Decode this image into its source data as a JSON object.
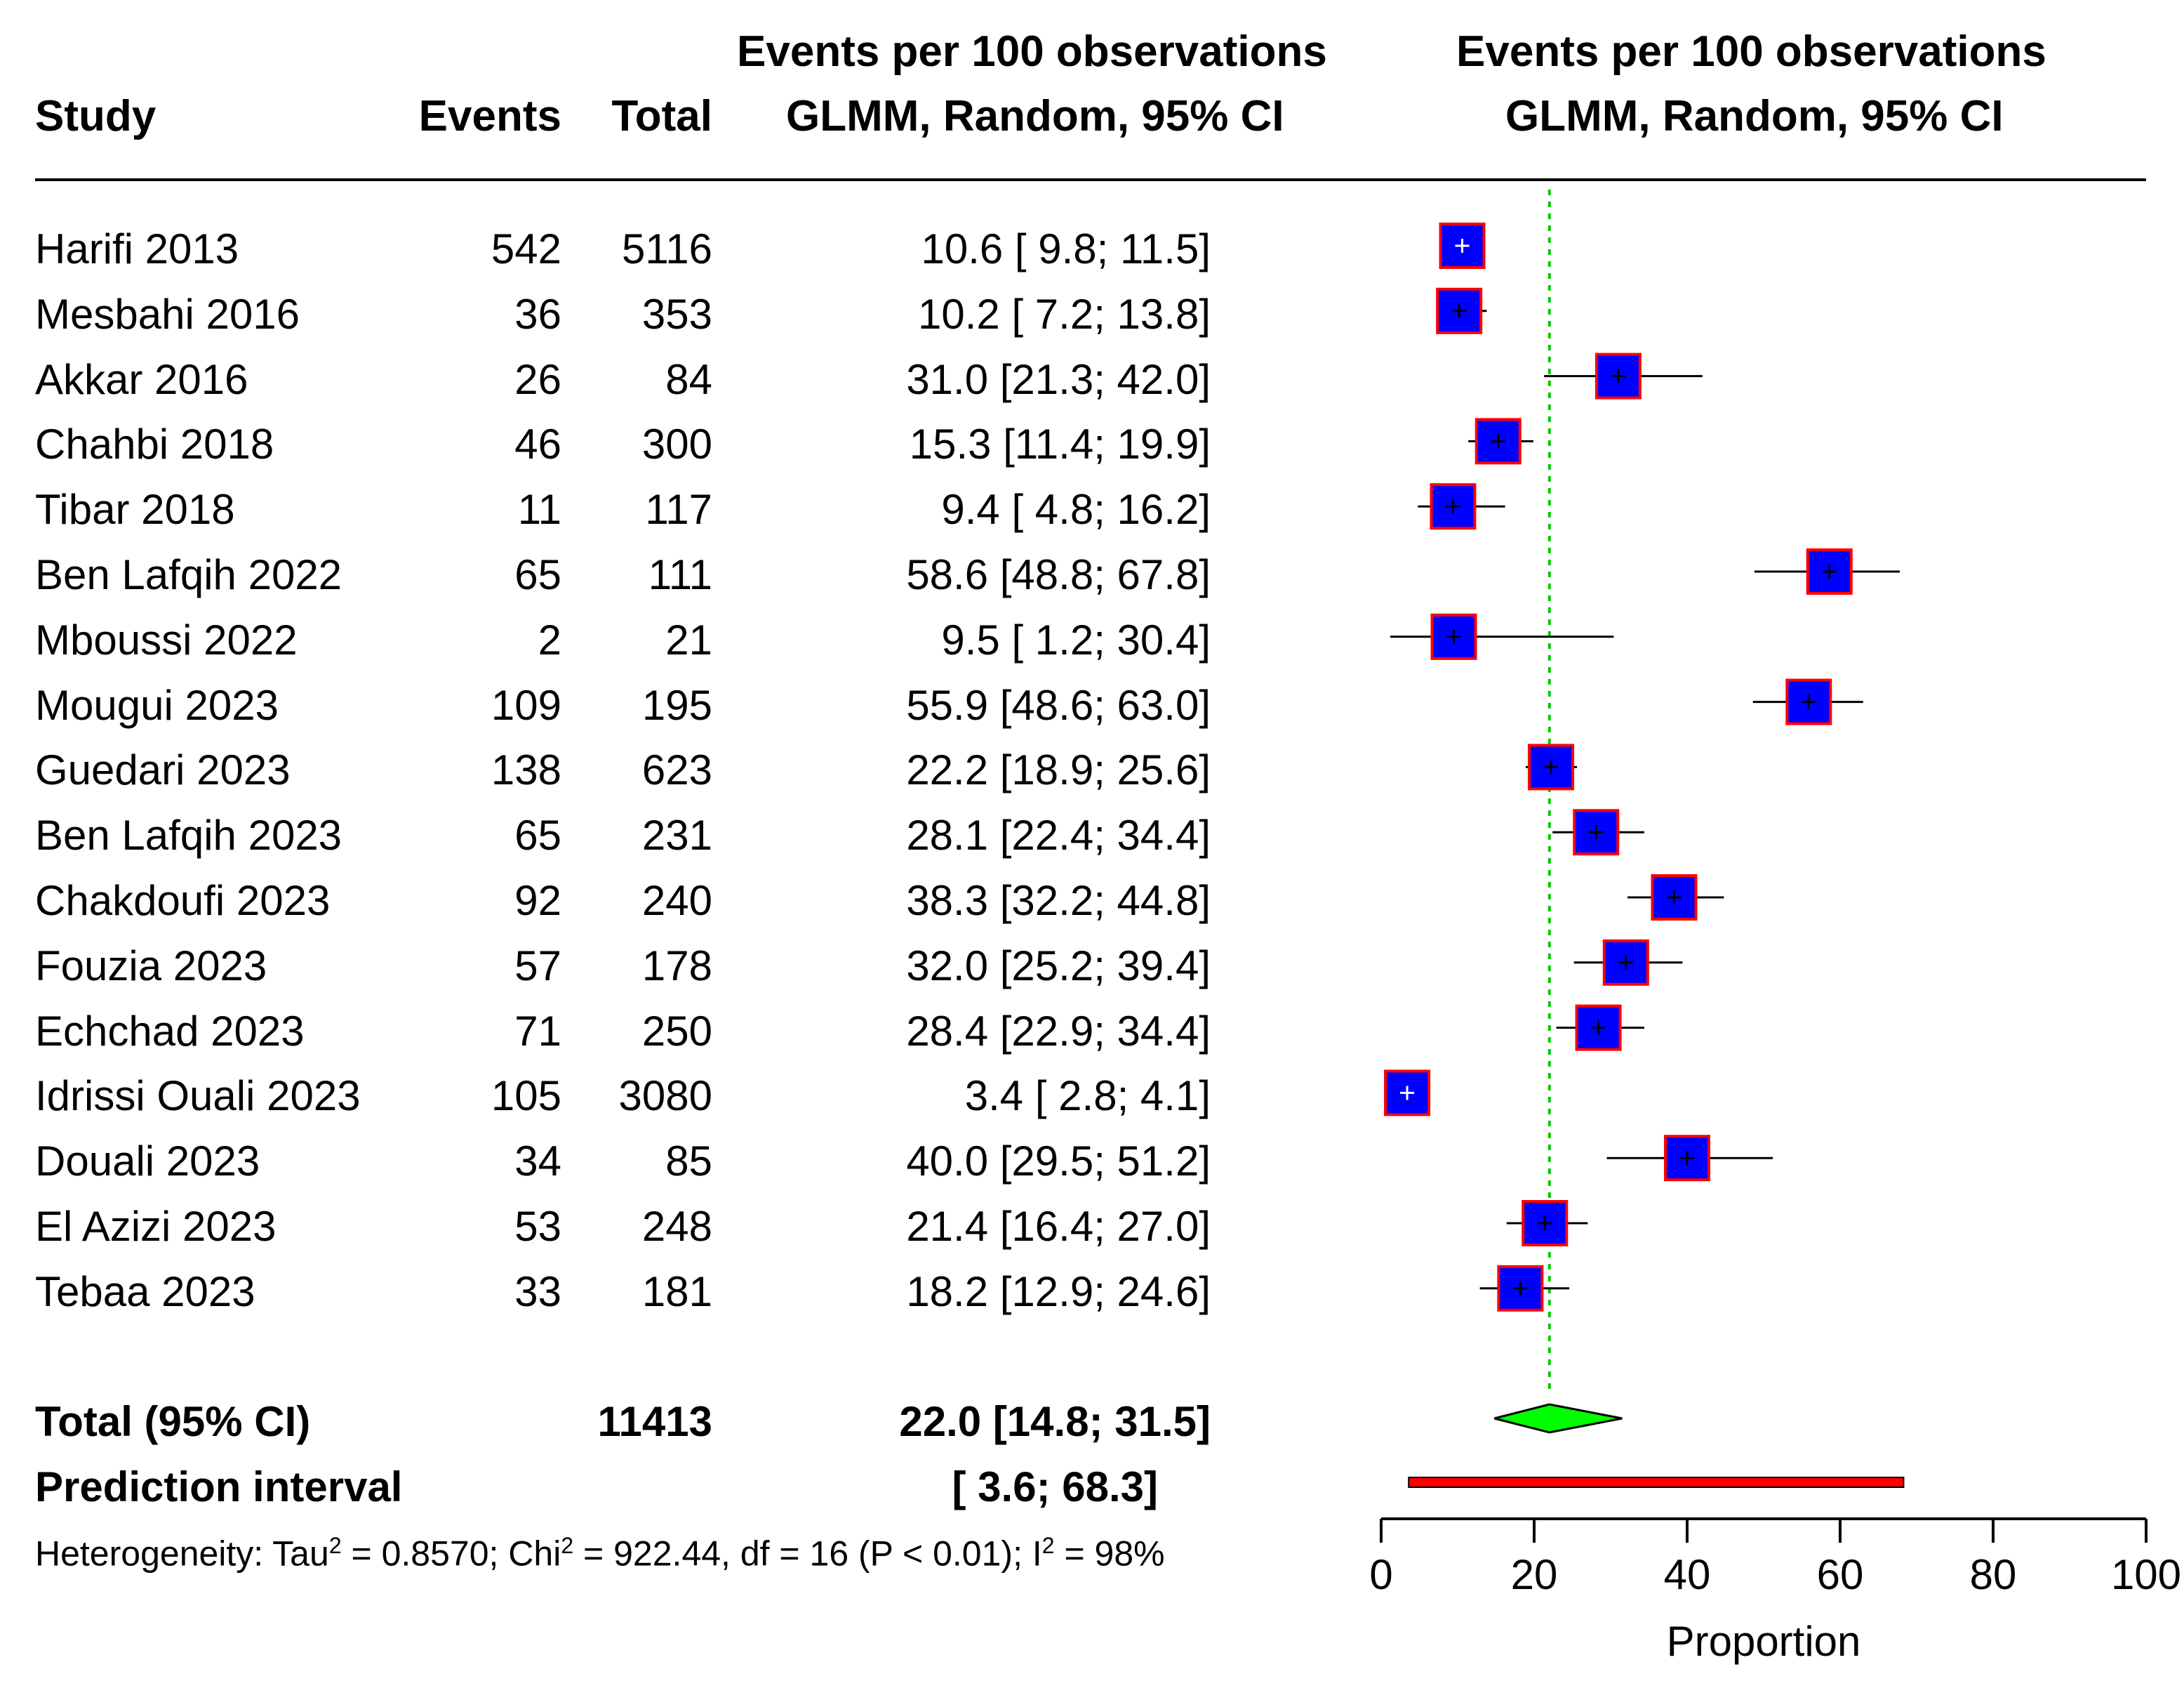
{
  "headers": {
    "study": "Study",
    "events": "Events",
    "total": "Total",
    "effect_line1": "Events per 100 observations",
    "effect_line2": "GLMM, Random, 95% CI",
    "plot_line1": "Events per 100 observations",
    "plot_line2": "GLMM, Random, 95% CI"
  },
  "studies": [
    {
      "study": "Harifi 2013",
      "events": "542",
      "total": "5116",
      "ci_text": "10.6 [ 9.8; 11.5]"
    },
    {
      "study": "Mesbahi 2016",
      "events": "36",
      "total": "353",
      "ci_text": "10.2 [ 7.2; 13.8]"
    },
    {
      "study": "Akkar 2016",
      "events": "26",
      "total": "84",
      "ci_text": "31.0 [21.3; 42.0]"
    },
    {
      "study": "Chahbi 2018",
      "events": "46",
      "total": "300",
      "ci_text": "15.3 [11.4; 19.9]"
    },
    {
      "study": "Tibar 2018",
      "events": "11",
      "total": "117",
      "ci_text": "9.4 [ 4.8; 16.2]"
    },
    {
      "study": "Ben Lafqih 2022",
      "events": "65",
      "total": "111",
      "ci_text": "58.6 [48.8; 67.8]"
    },
    {
      "study": "Mboussi 2022",
      "events": "2",
      "total": "21",
      "ci_text": "9.5 [ 1.2; 30.4]"
    },
    {
      "study": "Mougui 2023",
      "events": "109",
      "total": "195",
      "ci_text": "55.9 [48.6; 63.0]"
    },
    {
      "study": "Guedari 2023",
      "events": "138",
      "total": "623",
      "ci_text": "22.2 [18.9; 25.6]"
    },
    {
      "study": "Ben Lafqih 2023",
      "events": "65",
      "total": "231",
      "ci_text": "28.1 [22.4; 34.4]"
    },
    {
      "study": "Chakdoufi 2023",
      "events": "92",
      "total": "240",
      "ci_text": "38.3 [32.2; 44.8]"
    },
    {
      "study": "Fouzia 2023",
      "events": "57",
      "total": "178",
      "ci_text": "32.0 [25.2; 39.4]"
    },
    {
      "study": "Echchad 2023",
      "events": "71",
      "total": "250",
      "ci_text": "28.4 [22.9; 34.4]"
    },
    {
      "study": "Idrissi Ouali 2023",
      "events": "105",
      "total": "3080",
      "ci_text": "3.4 [ 2.8;  4.1]"
    },
    {
      "study": "Douali 2023",
      "events": "34",
      "total": "85",
      "ci_text": "40.0 [29.5; 51.2]"
    },
    {
      "study": "El Azizi 2023",
      "events": "53",
      "total": "248",
      "ci_text": "21.4 [16.4; 27.0]"
    },
    {
      "study": "Tebaa 2023",
      "events": "33",
      "total": "181",
      "ci_text": "18.2 [12.9; 24.6]"
    }
  ],
  "total": {
    "label": "Total (95% CI)",
    "total": "11413",
    "ci_text": "22.0 [14.8; 31.5]"
  },
  "prediction": {
    "label": "Prediction interval",
    "ci_text": "[ 3.6; 68.3]"
  },
  "heterogeneity": {
    "prefix": "Heterogeneity: Tau",
    "tau_sup": "2",
    "tau_val": " = 0.8570; Chi",
    "chi_sup": "2",
    "chi_val": " = 922.44, df = 16 (P < 0.01); I",
    "i_sup": "2",
    "i_val": " = 98%"
  },
  "chart_data": {
    "type": "forest",
    "xlabel": "Proportion",
    "xlim": [
      0,
      100
    ],
    "ticks": [
      "0",
      "20",
      "40",
      "60",
      "80",
      "100"
    ],
    "tick_values": [
      0,
      20,
      40,
      60,
      80,
      100
    ],
    "reference_line": 22.0,
    "studies": [
      {
        "name": "Harifi 2013",
        "est": 10.6,
        "lo": 9.8,
        "hi": 11.5
      },
      {
        "name": "Mesbahi 2016",
        "est": 10.2,
        "lo": 7.2,
        "hi": 13.8
      },
      {
        "name": "Akkar 2016",
        "est": 31.0,
        "lo": 21.3,
        "hi": 42.0
      },
      {
        "name": "Chahbi 2018",
        "est": 15.3,
        "lo": 11.4,
        "hi": 19.9
      },
      {
        "name": "Tibar 2018",
        "est": 9.4,
        "lo": 4.8,
        "hi": 16.2
      },
      {
        "name": "Ben Lafqih 2022",
        "est": 58.6,
        "lo": 48.8,
        "hi": 67.8
      },
      {
        "name": "Mboussi 2022",
        "est": 9.5,
        "lo": 1.2,
        "hi": 30.4
      },
      {
        "name": "Mougui 2023",
        "est": 55.9,
        "lo": 48.6,
        "hi": 63.0
      },
      {
        "name": "Guedari 2023",
        "est": 22.2,
        "lo": 18.9,
        "hi": 25.6
      },
      {
        "name": "Ben Lafqih 2023",
        "est": 28.1,
        "lo": 22.4,
        "hi": 34.4
      },
      {
        "name": "Chakdoufi 2023",
        "est": 38.3,
        "lo": 32.2,
        "hi": 44.8
      },
      {
        "name": "Fouzia 2023",
        "est": 32.0,
        "lo": 25.2,
        "hi": 39.4
      },
      {
        "name": "Echchad 2023",
        "est": 28.4,
        "lo": 22.9,
        "hi": 34.4
      },
      {
        "name": "Idrissi Ouali 2023",
        "est": 3.4,
        "lo": 2.8,
        "hi": 4.1
      },
      {
        "name": "Douali 2023",
        "est": 40.0,
        "lo": 29.5,
        "hi": 51.2
      },
      {
        "name": "El Azizi 2023",
        "est": 21.4,
        "lo": 16.4,
        "hi": 27.0
      },
      {
        "name": "Tebaa 2023",
        "est": 18.2,
        "lo": 12.9,
        "hi": 24.6
      }
    ],
    "pooled": {
      "est": 22.0,
      "lo": 14.8,
      "hi": 31.5
    },
    "prediction_interval": {
      "lo": 3.6,
      "hi": 68.3
    },
    "colors": {
      "square_fill": "#0000ff",
      "square_border": "#ff0000",
      "diamond_fill": "#00ff00",
      "prediction_bar": "#ff0000",
      "reference_line": "#00cc00"
    }
  }
}
